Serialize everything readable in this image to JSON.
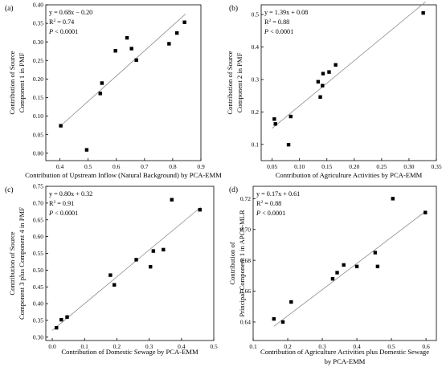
{
  "chart_data": [
    {
      "type": "scatter",
      "panel_label": "(a)",
      "xlabel": "Contribution of Upstream Inflow (Natural Background) by PCA-EMM",
      "ylabel": [
        "Contribution of Source",
        "Component 1 in PMF"
      ],
      "equation": "y = 0.68x − 0.20",
      "r2": "0.74",
      "p_value": "< 0.0001",
      "xlim": [
        0.35,
        0.9
      ],
      "ylim": [
        -0.02,
        0.4
      ],
      "xticks": [
        0.4,
        0.5,
        0.6,
        0.7,
        0.8,
        0.9
      ],
      "xtick_labels": [
        "0.4",
        "0.5",
        "0.6",
        "0.7",
        "0.8",
        "0.9"
      ],
      "yticks": [
        0.0,
        0.05,
        0.1,
        0.15,
        0.2,
        0.25,
        0.3,
        0.35,
        0.4
      ],
      "ytick_labels": [
        "0.00",
        "0.05",
        "0.10",
        "0.15",
        "0.20",
        "0.25",
        "0.30",
        "0.35",
        "0.40"
      ],
      "points": [
        [
          0.403,
          0.074
        ],
        [
          0.495,
          0.009
        ],
        [
          0.543,
          0.161
        ],
        [
          0.549,
          0.189
        ],
        [
          0.597,
          0.276
        ],
        [
          0.638,
          0.311
        ],
        [
          0.654,
          0.282
        ],
        [
          0.671,
          0.251
        ],
        [
          0.787,
          0.295
        ],
        [
          0.815,
          0.324
        ],
        [
          0.842,
          0.353
        ]
      ],
      "fit": {
        "slope": 0.68,
        "intercept": -0.2,
        "x_range": [
          0.4,
          0.845
        ]
      }
    },
    {
      "type": "scatter",
      "panel_label": "(b)",
      "xlabel": "Contribution of Agriculture Activities by PCA-EMM",
      "ylabel": [
        "Contribution of Source",
        "Component 2 in PMF"
      ],
      "equation": "y = 1.39x + 0.08",
      "r2": "0.88",
      "p_value": "< 0.0001",
      "xlim": [
        0.03,
        0.35
      ],
      "ylim": [
        0.05,
        0.53
      ],
      "xticks": [
        0.05,
        0.1,
        0.15,
        0.2,
        0.25,
        0.3,
        0.35
      ],
      "xtick_labels": [
        "0.05",
        "0.10",
        "0.15",
        "0.20",
        "0.25",
        "0.30",
        "0.35"
      ],
      "yticks": [
        0.1,
        0.2,
        0.3,
        0.4,
        0.5
      ],
      "ytick_labels": [
        "0.1",
        "0.2",
        "0.3",
        "0.4",
        "0.5"
      ],
      "points": [
        [
          0.054,
          0.178
        ],
        [
          0.056,
          0.163
        ],
        [
          0.08,
          0.099
        ],
        [
          0.084,
          0.186
        ],
        [
          0.134,
          0.293
        ],
        [
          0.138,
          0.246
        ],
        [
          0.142,
          0.281
        ],
        [
          0.143,
          0.318
        ],
        [
          0.154,
          0.323
        ],
        [
          0.166,
          0.345
        ],
        [
          0.326,
          0.505
        ]
      ],
      "fit": {
        "slope": 1.39,
        "intercept": 0.08,
        "x_range": [
          0.05,
          0.33
        ]
      }
    },
    {
      "type": "scatter",
      "panel_label": "(c)",
      "xlabel": "Contribution of Domestic Sewage by PCA-EMM",
      "ylabel": [
        "Contribution of Source",
        "Component 3 plus Component 4 in PMF"
      ],
      "equation": "y = 0.80x + 0.32",
      "r2": "0.91",
      "p_value": "< 0.0001",
      "xlim": [
        -0.02,
        0.5
      ],
      "ylim": [
        0.29,
        0.75
      ],
      "xticks": [
        0.0,
        0.1,
        0.2,
        0.3,
        0.4,
        0.5
      ],
      "xtick_labels": [
        "0.0",
        "0.1",
        "0.2",
        "0.3",
        "0.4",
        "0.5"
      ],
      "yticks": [
        0.3,
        0.35,
        0.4,
        0.45,
        0.5,
        0.55,
        0.6,
        0.65,
        0.7,
        0.75
      ],
      "ytick_labels": [
        "0.30",
        "0.35",
        "0.40",
        "0.45",
        "0.50",
        "0.55",
        "0.60",
        "0.65",
        "0.70",
        "0.75"
      ],
      "points": [
        [
          0.013,
          0.328
        ],
        [
          0.028,
          0.352
        ],
        [
          0.046,
          0.36
        ],
        [
          0.18,
          0.485
        ],
        [
          0.192,
          0.456
        ],
        [
          0.26,
          0.531
        ],
        [
          0.304,
          0.51
        ],
        [
          0.313,
          0.557
        ],
        [
          0.344,
          0.561
        ],
        [
          0.37,
          0.71
        ],
        [
          0.457,
          0.68
        ]
      ],
      "fit": {
        "slope": 0.8,
        "intercept": 0.32,
        "x_range": [
          0.0,
          0.46
        ]
      }
    },
    {
      "type": "scatter",
      "panel_label": "(d)",
      "xlabel": [
        "Contribution of Agriculture Activities plus Domestic Sewage",
        "by PCA-EMM"
      ],
      "ylabel": [
        "Contribution of",
        "Principal Component 1 in APCS-MLR"
      ],
      "equation": "y = 0.17x + 0.61",
      "r2": "0.88",
      "p_value": "< 0.0001",
      "xlim": [
        0.1,
        0.63
      ],
      "ylim": [
        0.628,
        0.728
      ],
      "xticks": [
        0.1,
        0.2,
        0.3,
        0.4,
        0.5,
        0.6
      ],
      "xtick_labels": [
        "0.1",
        "0.2",
        "0.3",
        "0.4",
        "0.5",
        "0.6"
      ],
      "yticks": [
        0.64,
        0.66,
        0.68,
        0.7,
        0.72
      ],
      "ytick_labels": [
        "0.64",
        "0.66",
        "0.68",
        "0.70",
        "0.72"
      ],
      "points": [
        [
          0.16,
          0.642
        ],
        [
          0.186,
          0.64
        ],
        [
          0.21,
          0.653
        ],
        [
          0.33,
          0.668
        ],
        [
          0.343,
          0.672
        ],
        [
          0.362,
          0.677
        ],
        [
          0.4,
          0.676
        ],
        [
          0.453,
          0.685
        ],
        [
          0.46,
          0.676
        ],
        [
          0.504,
          0.72
        ],
        [
          0.598,
          0.711
        ]
      ],
      "fit": {
        "slope": 0.17,
        "intercept": 0.61,
        "x_range": [
          0.16,
          0.598
        ]
      }
    }
  ]
}
